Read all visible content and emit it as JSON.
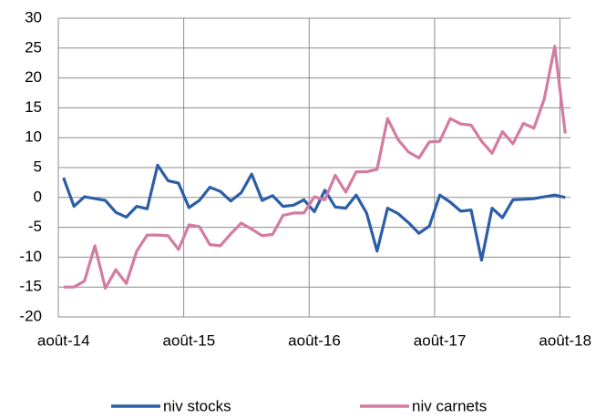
{
  "chart_data": {
    "type": "line",
    "categories": [
      "août-14",
      null,
      null,
      null,
      null,
      null,
      null,
      null,
      null,
      null,
      null,
      null,
      "août-15",
      null,
      null,
      null,
      null,
      null,
      null,
      null,
      null,
      null,
      null,
      null,
      "août-16",
      null,
      null,
      null,
      null,
      null,
      null,
      null,
      null,
      null,
      null,
      null,
      "août-17",
      null,
      null,
      null,
      null,
      null,
      null,
      null,
      null,
      null,
      null,
      null,
      "août-18"
    ],
    "series": [
      {
        "name": "niv stocks",
        "color": "#2c5ea6",
        "values": [
          3.3,
          -1.5,
          0.1,
          -0.2,
          -0.5,
          -2.5,
          -3.3,
          -1.5,
          -1.9,
          5.4,
          2.8,
          2.4,
          -1.7,
          -0.5,
          1.7,
          1.0,
          -0.6,
          0.8,
          3.9,
          -0.5,
          0.3,
          -1.5,
          -1.3,
          -0.4,
          -2.4,
          1.2,
          -1.6,
          -1.8,
          0.4,
          -2.6,
          -9.0,
          -1.8,
          -2.7,
          -4.2,
          -6.0,
          -4.8,
          0.4,
          -0.8,
          -2.3,
          -2.1,
          -10.5,
          -1.8,
          -3.4,
          -0.4,
          -0.3,
          -0.2,
          0.1,
          0.4,
          0.0
        ]
      },
      {
        "name": "niv carnets",
        "color": "#d47ba2",
        "values": [
          -15.0,
          -15.0,
          -14.0,
          -8.1,
          -15.2,
          -12.1,
          -14.4,
          -9.0,
          -6.3,
          -6.3,
          -6.4,
          -8.7,
          -4.6,
          -4.9,
          -7.9,
          -8.1,
          -6.1,
          -4.3,
          -5.3,
          -6.4,
          -6.2,
          -3.0,
          -2.6,
          -2.6,
          0.1,
          -0.4,
          3.7,
          0.9,
          4.3,
          4.3,
          4.7,
          13.2,
          9.7,
          7.6,
          6.6,
          9.3,
          9.4,
          13.2,
          12.3,
          12.1,
          9.4,
          7.4,
          11.0,
          9.0,
          12.4,
          11.6,
          16.5,
          25.3,
          10.7
        ]
      }
    ],
    "ylim": [
      -20,
      30
    ],
    "yticks": [
      -20,
      -15,
      -10,
      -5,
      0,
      5,
      10,
      15,
      20,
      25,
      30
    ],
    "grid": true,
    "legend": "bottom"
  }
}
